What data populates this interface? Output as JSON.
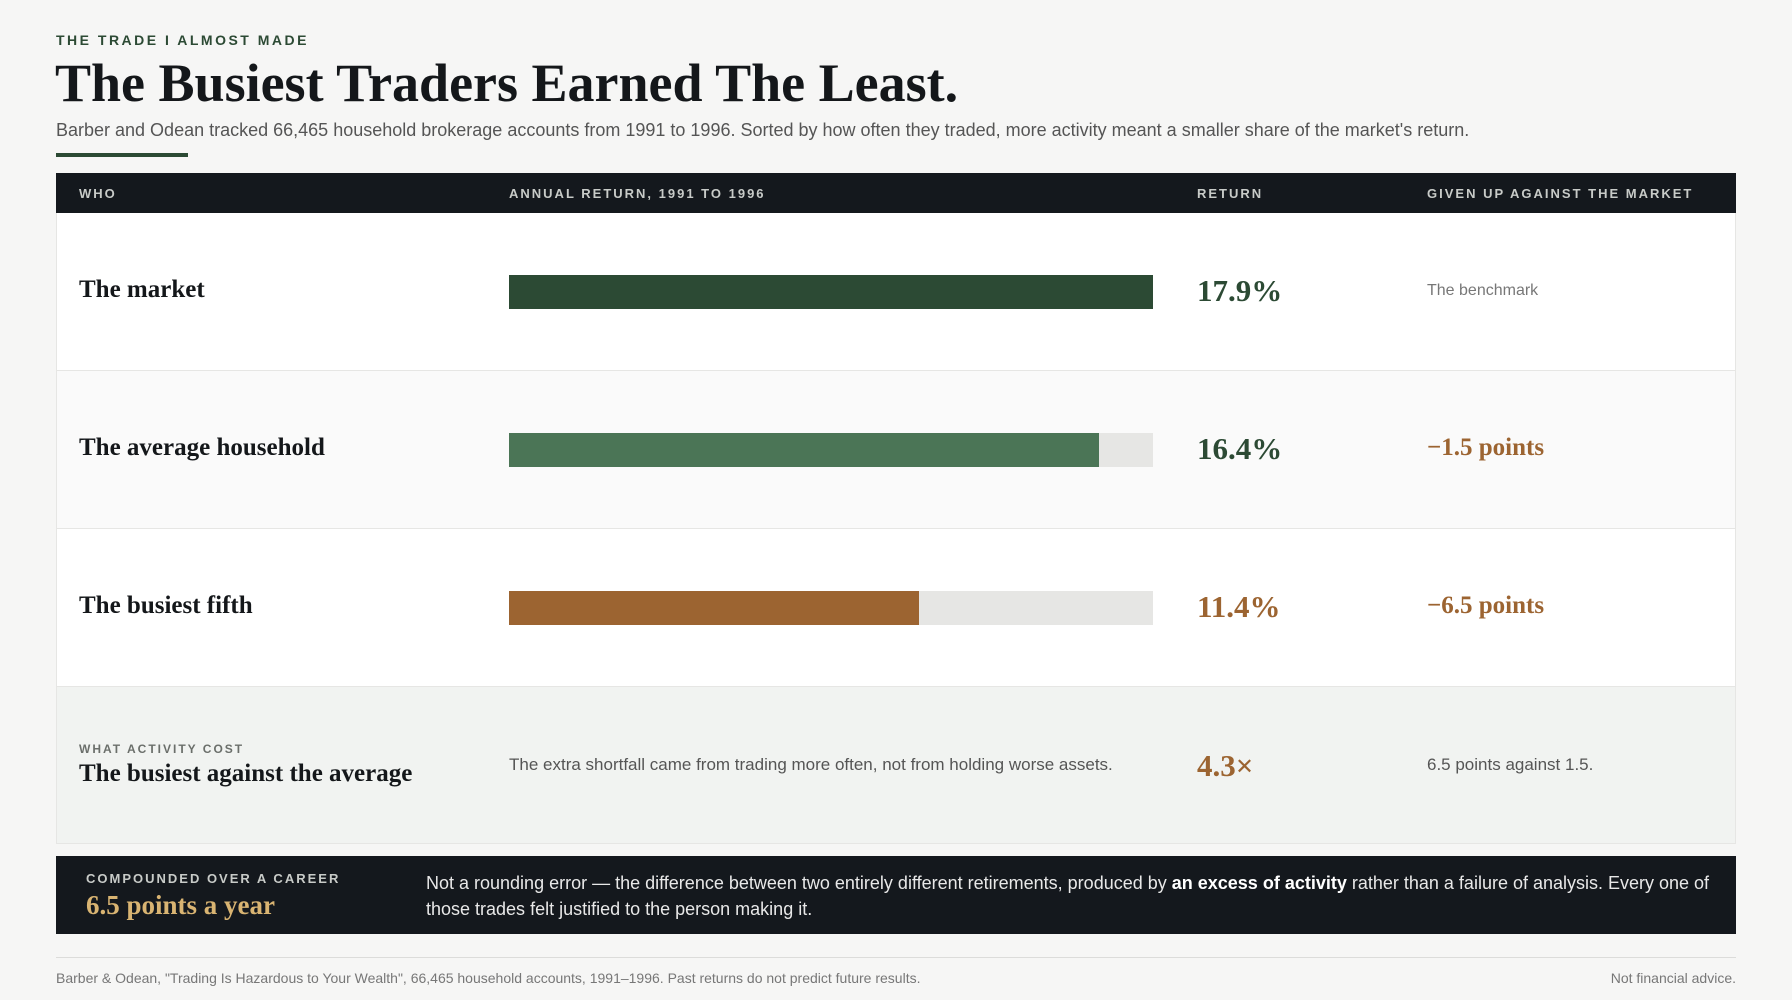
{
  "header": {
    "kicker": "THE TRADE I ALMOST MADE",
    "title": "The Busiest Traders Earned The Least.",
    "subtitle": "Barber and Odean tracked 66,465 household brokerage accounts from 1991 to 1996. Sorted by how often they traded, more activity meant a smaller share of the market's return."
  },
  "table": {
    "columns": [
      "WHO",
      "ANNUAL RETURN, 1991 TO 1996",
      "RETURN",
      "GIVEN UP AGAINST THE MARKET"
    ],
    "summary": {
      "kicker": "WHAT ACTIVITY COST",
      "label": "The busiest against the average",
      "note": "The extra shortfall came from trading more often, not from holding worse assets.",
      "value": "4.3×",
      "given_up": "6.5 points against 1.5."
    }
  },
  "chart_data": {
    "type": "bar",
    "orientation": "horizontal",
    "categories": [
      "The market",
      "The average household",
      "The busiest fifth"
    ],
    "values": [
      17.9,
      16.4,
      11.4
    ],
    "value_labels": [
      "17.9%",
      "16.4%",
      "11.4%"
    ],
    "xlim": [
      0,
      17.9
    ],
    "colors": [
      "#2c4a34",
      "#4b7556",
      "#9c6431"
    ],
    "label_colors": [
      "#2c4a34",
      "#2c4a34",
      "#9c6431"
    ],
    "given_up": [
      "The benchmark",
      "−1.5 points",
      "−6.5 points"
    ]
  },
  "callout": {
    "kicker": "COMPOUNDED OVER A CAREER",
    "title": "6.5 points a year",
    "text_before": "Not a rounding error — the difference between two entirely different retirements, produced by ",
    "emphasis": "an excess of activity",
    "text_after": " rather than a failure of analysis. Every one of those trades felt justified to the person making it."
  },
  "footer": {
    "source": "Barber & Odean, \"Trading Is Hazardous to Your Wealth\", 66,465 household accounts, 1991–1996. Past returns do not predict future results.",
    "disclaimer": "Not financial advice."
  }
}
